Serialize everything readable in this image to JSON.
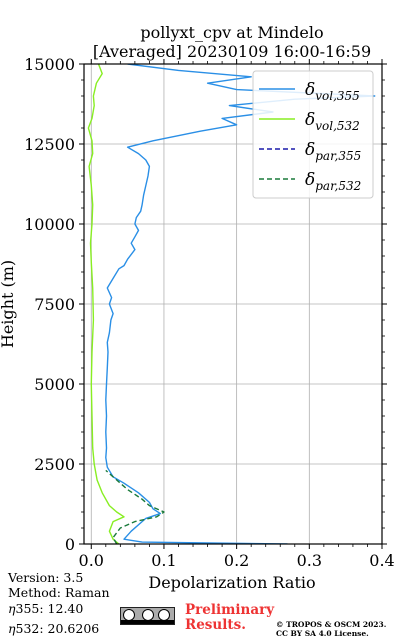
{
  "chart_data": {
    "type": "line",
    "title": [
      "pollyxt_cpv at Mindelo",
      "[Averaged] 20230109 16:00-16:59"
    ],
    "xlabel": "Depolarization Ratio",
    "ylabel": "Height (m)",
    "xlim": [
      -0.01,
      0.4
    ],
    "ylim": [
      0,
      15000
    ],
    "xticks": [
      "0.0",
      "0.1",
      "0.2",
      "0.3",
      "0.4"
    ],
    "yticks": [
      "0",
      "2500",
      "5000",
      "7500",
      "10000",
      "12500",
      "15000"
    ],
    "grid": true,
    "legend_position": "upper-right",
    "series": [
      {
        "name": "δ_vol,355",
        "legend_base": "δ",
        "legend_sub": "vol,355",
        "color": "#2a8fe6",
        "dash": "solid",
        "points": [
          [
            0.27,
            0
          ],
          [
            0.16,
            30
          ],
          [
            0.07,
            60
          ],
          [
            0.045,
            150
          ],
          [
            0.055,
            400
          ],
          [
            0.075,
            800
          ],
          [
            0.095,
            950
          ],
          [
            0.085,
            1100
          ],
          [
            0.08,
            1300
          ],
          [
            0.065,
            1600
          ],
          [
            0.045,
            1900
          ],
          [
            0.03,
            2100
          ],
          [
            0.022,
            2400
          ],
          [
            0.02,
            2700
          ],
          [
            0.021,
            3000
          ],
          [
            0.02,
            3500
          ],
          [
            0.021,
            4000
          ],
          [
            0.02,
            4500
          ],
          [
            0.021,
            5000
          ],
          [
            0.022,
            5500
          ],
          [
            0.023,
            6000
          ],
          [
            0.022,
            6300
          ],
          [
            0.025,
            6600
          ],
          [
            0.027,
            7000
          ],
          [
            0.03,
            7200
          ],
          [
            0.025,
            7500
          ],
          [
            0.028,
            7700
          ],
          [
            0.022,
            8000
          ],
          [
            0.03,
            8300
          ],
          [
            0.038,
            8600
          ],
          [
            0.045,
            8700
          ],
          [
            0.05,
            8900
          ],
          [
            0.06,
            9200
          ],
          [
            0.055,
            9400
          ],
          [
            0.06,
            9600
          ],
          [
            0.065,
            9800
          ],
          [
            0.06,
            10000
          ],
          [
            0.062,
            10200
          ],
          [
            0.068,
            10400
          ],
          [
            0.07,
            10600
          ],
          [
            0.072,
            10900
          ],
          [
            0.075,
            11200
          ],
          [
            0.078,
            11500
          ],
          [
            0.08,
            11800
          ],
          [
            0.075,
            12000
          ],
          [
            0.065,
            12200
          ],
          [
            0.05,
            12400
          ],
          [
            0.085,
            12600
          ],
          [
            0.15,
            12900
          ],
          [
            0.2,
            13100
          ],
          [
            0.18,
            13300
          ],
          [
            0.25,
            13500
          ],
          [
            0.19,
            13700
          ],
          [
            0.28,
            13900
          ],
          [
            0.39,
            14000
          ],
          [
            0.2,
            14200
          ],
          [
            0.16,
            14400
          ],
          [
            0.22,
            14600
          ],
          [
            0.12,
            14800
          ],
          [
            0.05,
            15000
          ]
        ]
      },
      {
        "name": "δ_vol,532",
        "legend_base": "δ",
        "legend_sub": "vol,532",
        "color": "#88ee22",
        "dash": "solid",
        "points": [
          [
            0.038,
            0
          ],
          [
            0.03,
            150
          ],
          [
            0.025,
            400
          ],
          [
            0.03,
            700
          ],
          [
            0.045,
            850
          ],
          [
            0.035,
            1000
          ],
          [
            0.025,
            1200
          ],
          [
            0.015,
            1600
          ],
          [
            0.008,
            2000
          ],
          [
            0.004,
            2500
          ],
          [
            0.002,
            3000
          ],
          [
            0.001,
            4000
          ],
          [
            0.0,
            5000
          ],
          [
            0.001,
            6000
          ],
          [
            0.003,
            7000
          ],
          [
            0.002,
            8000
          ],
          [
            0.0,
            8800
          ],
          [
            -0.001,
            9400
          ],
          [
            0.001,
            10000
          ],
          [
            0.002,
            10600
          ],
          [
            0.0,
            11200
          ],
          [
            -0.003,
            11800
          ],
          [
            0.002,
            12200
          ],
          [
            0.001,
            12600
          ],
          [
            -0.004,
            13000
          ],
          [
            0.001,
            13300
          ],
          [
            0.004,
            13700
          ],
          [
            0.003,
            14000
          ],
          [
            0.007,
            14400
          ],
          [
            0.015,
            14700
          ],
          [
            0.01,
            15000
          ]
        ]
      },
      {
        "name": "δ_par,355",
        "legend_base": "δ",
        "legend_sub": "par,355",
        "color": "#1a1aaa",
        "dash": "dashed",
        "points": []
      },
      {
        "name": "δ_par,532",
        "legend_base": "δ",
        "legend_sub": "par,532",
        "color": "#1a7a3a",
        "dash": "dashed",
        "points": [
          [
            0.035,
            0
          ],
          [
            0.03,
            200
          ],
          [
            0.04,
            500
          ],
          [
            0.06,
            700
          ],
          [
            0.09,
            850
          ],
          [
            0.1,
            1000
          ],
          [
            0.08,
            1200
          ],
          [
            0.07,
            1400
          ],
          [
            0.05,
            1700
          ],
          [
            0.035,
            2000
          ],
          [
            0.02,
            2300
          ]
        ]
      }
    ]
  },
  "info": {
    "version": "Version: 3.5",
    "method": "Method: Raman",
    "eta355_label": "355:  12.40",
    "eta532_label": "532: 20.6206"
  },
  "footer": {
    "preliminary_line1": "Preliminary",
    "preliminary_line2": "Results.",
    "copyright_line1": "© TROPOS & OSCM 2023.",
    "copyright_line2": "CC BY SA 4.0 License."
  }
}
